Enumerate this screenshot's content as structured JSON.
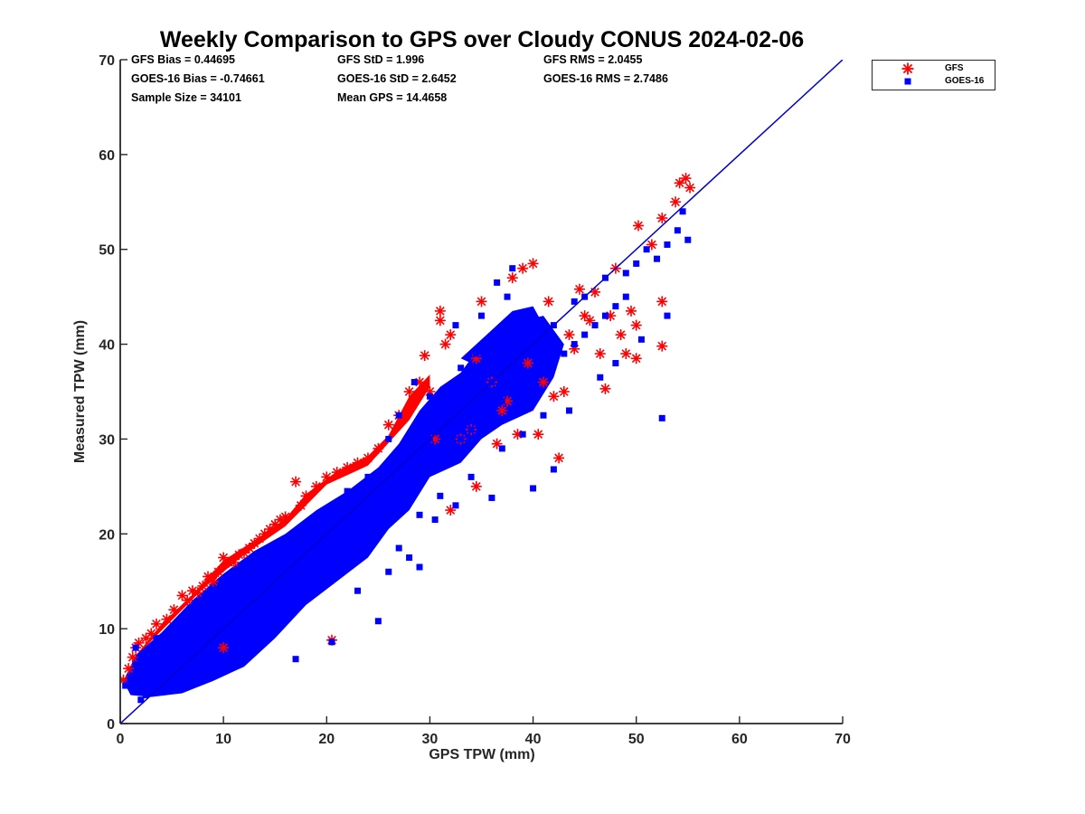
{
  "chart_data": {
    "type": "scatter",
    "title": "Weekly Comparison to GPS over Cloudy CONUS 2024-02-06",
    "xlabel": "GPS TPW (mm)",
    "ylabel": "Measured TPW (mm)",
    "xlim": [
      0,
      70
    ],
    "ylim": [
      0,
      70
    ],
    "xticks": [
      "0",
      "10",
      "20",
      "30",
      "40",
      "50",
      "60",
      "70"
    ],
    "yticks": [
      "0",
      "10",
      "20",
      "30",
      "40",
      "50",
      "60",
      "70"
    ],
    "grid": false,
    "legend_position": "outside-top-right",
    "stats": [
      [
        "GFS Bias = 0.44695",
        "GFS StD = 1.996",
        "GFS RMS = 2.0455"
      ],
      [
        "GOES-16 Bias = -0.74661",
        "GOES-16 StD = 2.6452",
        "GOES-16 RMS = 2.7486"
      ],
      [
        "Sample Size = 34101",
        "Mean GPS = 14.4658"
      ]
    ],
    "reference_line": {
      "type": "one-to-one",
      "color": "#0000cc",
      "from": [
        0,
        0
      ],
      "to": [
        70,
        70
      ]
    },
    "series": [
      {
        "name": "GFS",
        "marker": "asterisk",
        "color": "#ff0000",
        "points": [
          [
            0.3,
            4.6
          ],
          [
            0.8,
            5.8
          ],
          [
            1.2,
            7.0
          ],
          [
            1.5,
            8.0
          ],
          [
            1.8,
            8.5
          ],
          [
            2.5,
            9.0
          ],
          [
            3.0,
            9.5
          ],
          [
            3.5,
            10.5
          ],
          [
            4.5,
            11.0
          ],
          [
            5.2,
            12.0
          ],
          [
            6.0,
            13.5
          ],
          [
            6.5,
            13.0
          ],
          [
            7.0,
            14.0
          ],
          [
            7.5,
            13.8
          ],
          [
            8.0,
            14.5
          ],
          [
            8.5,
            15.5
          ],
          [
            9.0,
            15.0
          ],
          [
            9.5,
            16.0
          ],
          [
            10.0,
            17.5
          ],
          [
            10.5,
            17.0
          ],
          [
            11.0,
            17.0
          ],
          [
            11.5,
            17.8
          ],
          [
            12.0,
            18.0
          ],
          [
            12.5,
            18.5
          ],
          [
            13.0,
            19.0
          ],
          [
            13.5,
            19.5
          ],
          [
            14.0,
            20.0
          ],
          [
            14.5,
            20.5
          ],
          [
            15.0,
            21.0
          ],
          [
            15.5,
            21.5
          ],
          [
            16.0,
            21.8
          ],
          [
            17.0,
            25.5
          ],
          [
            17.5,
            23.0
          ],
          [
            18.0,
            24.0
          ],
          [
            19.0,
            25.0
          ],
          [
            20.0,
            26.0
          ],
          [
            21.0,
            26.5
          ],
          [
            22.0,
            27.0
          ],
          [
            23.0,
            27.5
          ],
          [
            24.0,
            28.0
          ],
          [
            25.0,
            29.0
          ],
          [
            26.0,
            31.5
          ],
          [
            27.0,
            32.5
          ],
          [
            28.0,
            35.0
          ],
          [
            29.0,
            36.0
          ],
          [
            29.5,
            38.8
          ],
          [
            30.0,
            35.0
          ],
          [
            30.5,
            30.0
          ],
          [
            31.0,
            43.5
          ],
          [
            31.0,
            42.5
          ],
          [
            31.5,
            40.0
          ],
          [
            32.0,
            41.0
          ],
          [
            32.0,
            22.5
          ],
          [
            33.0,
            30.0
          ],
          [
            34.0,
            31.0
          ],
          [
            34.5,
            25.0
          ],
          [
            34.5,
            38.5
          ],
          [
            35.0,
            44.5
          ],
          [
            36.0,
            36.0
          ],
          [
            36.5,
            29.5
          ],
          [
            37.0,
            33.0
          ],
          [
            37.5,
            34.0
          ],
          [
            38.0,
            47.0
          ],
          [
            38.5,
            30.5
          ],
          [
            39.0,
            48.0
          ],
          [
            39.5,
            38.0
          ],
          [
            40.0,
            48.5
          ],
          [
            40.5,
            30.5
          ],
          [
            41.0,
            36.0
          ],
          [
            41.5,
            44.5
          ],
          [
            42.0,
            34.5
          ],
          [
            42.5,
            28.0
          ],
          [
            43.0,
            35.0
          ],
          [
            43.5,
            41.0
          ],
          [
            44.0,
            39.5
          ],
          [
            44.5,
            45.8
          ],
          [
            45.0,
            43.0
          ],
          [
            45.5,
            42.5
          ],
          [
            46.0,
            45.5
          ],
          [
            46.5,
            39.0
          ],
          [
            47.0,
            35.3
          ],
          [
            47.5,
            43.0
          ],
          [
            48.0,
            48.0
          ],
          [
            48.5,
            41.0
          ],
          [
            49.0,
            39.0
          ],
          [
            49.5,
            43.5
          ],
          [
            50.0,
            38.5
          ],
          [
            50.0,
            42.0
          ],
          [
            50.2,
            52.5
          ],
          [
            51.5,
            50.5
          ],
          [
            52.5,
            53.3
          ],
          [
            52.5,
            44.5
          ],
          [
            52.5,
            39.8
          ],
          [
            53.8,
            55.0
          ],
          [
            54.2,
            57.0
          ],
          [
            54.8,
            57.5
          ],
          [
            55.2,
            56.5
          ],
          [
            20.5,
            8.8
          ],
          [
            10.0,
            8.0
          ]
        ]
      },
      {
        "name": "GOES-16",
        "marker": "square",
        "color": "#0000ff",
        "points": [
          [
            0.5,
            4.0
          ],
          [
            1.0,
            4.5
          ],
          [
            1.5,
            3.5
          ],
          [
            2.0,
            2.5
          ],
          [
            2.5,
            3.0
          ],
          [
            3.0,
            3.5
          ],
          [
            3.5,
            4.0
          ],
          [
            4.0,
            4.5
          ],
          [
            4.5,
            5.0
          ],
          [
            5.0,
            5.5
          ],
          [
            6.0,
            6.0
          ],
          [
            7.0,
            6.5
          ],
          [
            8.0,
            7.5
          ],
          [
            9.0,
            8.0
          ],
          [
            10.0,
            9.0
          ],
          [
            11.0,
            9.5
          ],
          [
            12.0,
            10.5
          ],
          [
            13.0,
            11.5
          ],
          [
            14.0,
            12.5
          ],
          [
            15.0,
            13.5
          ],
          [
            16.0,
            14.0
          ],
          [
            17.0,
            15.0
          ],
          [
            18.0,
            16.0
          ],
          [
            19.0,
            17.0
          ],
          [
            20.0,
            17.5
          ],
          [
            21.0,
            18.5
          ],
          [
            22.0,
            19.5
          ],
          [
            23.0,
            20.5
          ],
          [
            24.0,
            21.0
          ],
          [
            25.0,
            22.0
          ],
          [
            26.0,
            23.0
          ],
          [
            27.0,
            24.0
          ],
          [
            28.0,
            25.0
          ],
          [
            29.0,
            26.0
          ],
          [
            30.0,
            27.0
          ],
          [
            31.0,
            28.0
          ],
          [
            32.0,
            29.0
          ],
          [
            33.0,
            30.0
          ],
          [
            34.0,
            31.0
          ],
          [
            35.0,
            31.5
          ],
          [
            36.0,
            33.0
          ],
          [
            37.0,
            34.0
          ],
          [
            38.0,
            35.0
          ],
          [
            39.0,
            36.0
          ],
          [
            40.0,
            36.5
          ],
          [
            41.0,
            37.0
          ],
          [
            42.0,
            38.0
          ],
          [
            43.0,
            39.0
          ],
          [
            44.0,
            40.0
          ],
          [
            45.0,
            41.0
          ],
          [
            46.0,
            42.0
          ],
          [
            47.0,
            43.0
          ],
          [
            48.0,
            44.0
          ],
          [
            49.0,
            45.0
          ],
          [
            50.0,
            48.5
          ],
          [
            51.0,
            50.0
          ],
          [
            52.0,
            49.0
          ],
          [
            53.0,
            50.5
          ],
          [
            54.0,
            52.0
          ],
          [
            55.0,
            51.0
          ],
          [
            54.5,
            54.0
          ],
          [
            52.5,
            32.2
          ],
          [
            25.0,
            10.8
          ],
          [
            17.0,
            6.8
          ],
          [
            40.0,
            24.8
          ],
          [
            42.0,
            26.8
          ],
          [
            36.0,
            23.8
          ],
          [
            31.0,
            24.0
          ],
          [
            38.0,
            48.0
          ],
          [
            36.5,
            46.5
          ],
          [
            33.0,
            37.5
          ],
          [
            30.0,
            34.5
          ],
          [
            27.0,
            32.5
          ],
          [
            34.5,
            39.0
          ],
          [
            47.0,
            47.0
          ],
          [
            45.0,
            45.0
          ],
          [
            44.0,
            44.5
          ],
          [
            49.0,
            47.5
          ],
          [
            20.5,
            8.6
          ],
          [
            27.0,
            18.5
          ],
          [
            29.0,
            22.0
          ],
          [
            30.5,
            21.5
          ],
          [
            32.5,
            23.0
          ],
          [
            34.0,
            26.0
          ],
          [
            37.0,
            29.0
          ],
          [
            39.0,
            30.5
          ],
          [
            41.0,
            32.5
          ],
          [
            43.5,
            33.0
          ],
          [
            46.5,
            36.5
          ],
          [
            48.0,
            38.0
          ],
          [
            50.5,
            40.5
          ],
          [
            53.0,
            43.0
          ],
          [
            35.0,
            43.0
          ],
          [
            37.5,
            45.0
          ],
          [
            32.5,
            42.0
          ],
          [
            28.5,
            36.0
          ],
          [
            26.0,
            30.0
          ],
          [
            24.0,
            26.0
          ],
          [
            22.0,
            24.5
          ],
          [
            19.5,
            21.0
          ],
          [
            16.0,
            18.0
          ],
          [
            13.0,
            15.5
          ],
          [
            10.5,
            13.0
          ],
          [
            8.0,
            11.5
          ],
          [
            6.0,
            9.5
          ],
          [
            4.5,
            8.0
          ],
          [
            3.0,
            7.0
          ],
          [
            2.0,
            6.5
          ],
          [
            1.5,
            8.0
          ],
          [
            3.5,
            9.0
          ],
          [
            5.0,
            10.0
          ],
          [
            7.0,
            12.0
          ],
          [
            9.0,
            14.0
          ],
          [
            11.0,
            15.0
          ],
          [
            12.0,
            12.0
          ],
          [
            14.0,
            14.0
          ],
          [
            16.0,
            16.0
          ],
          [
            18.0,
            18.0
          ],
          [
            20.0,
            20.0
          ],
          [
            22.0,
            22.0
          ],
          [
            24.0,
            24.0
          ],
          [
            26.0,
            26.0
          ],
          [
            28.0,
            28.0
          ],
          [
            30.0,
            30.0
          ],
          [
            32.0,
            32.0
          ],
          [
            34.0,
            34.0
          ],
          [
            36.0,
            36.0
          ],
          [
            38.0,
            38.0
          ],
          [
            40.0,
            40.0
          ],
          [
            42.0,
            42.0
          ],
          [
            29.0,
            16.5
          ],
          [
            28.0,
            17.5
          ],
          [
            26.0,
            16.0
          ],
          [
            23.0,
            14.0
          ]
        ]
      }
    ]
  }
}
